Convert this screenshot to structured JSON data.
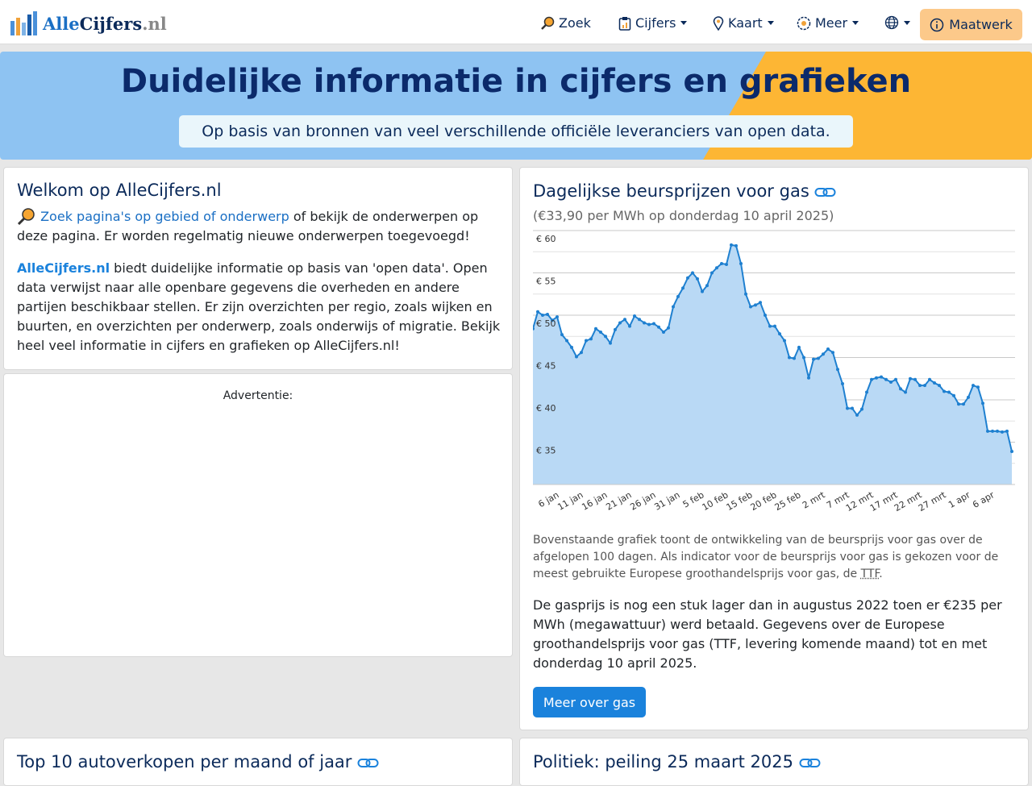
{
  "nav": {
    "brand": {
      "part1": "Alle",
      "part2": "Cijfers",
      "part3": ".nl"
    },
    "items": [
      "Zoek",
      "Cijfers",
      "Kaart",
      "Meer"
    ],
    "button": "Maatwerk"
  },
  "hero": {
    "title": "Duidelijke informatie in cijfers en grafieken",
    "subtitle": "Op basis van bronnen van veel verschillende officiële leveranciers van open data."
  },
  "welcome": {
    "title": "Welkom op AlleCijfers.nl",
    "link": "Zoek pagina's op gebied of onderwerp",
    "text1": " of bekijk de onderwerpen op deze pagina. Er worden regelmatig nieuwe onderwerpen toegevoegd!",
    "brand": "AlleCijfers.nl",
    "text2": " biedt duidelijke informatie op basis van 'open data'. Open data verwijst naar alle openbare gegevens die overheden en andere partijen beschikbaar stellen. Er zijn overzichten per regio, zoals wijken en buurten, en overzichten per onderwerp, zoals onderwijs of migratie. Bekijk heel veel informatie in cijfers en grafieken op AlleCijfers.nl!"
  },
  "ad": {
    "label": "Advertentie:"
  },
  "chart_data": {
    "type": "line",
    "title": "Dagelijkse beursprijzen voor gas",
    "subtitle": "(€33,90 per MWh op donderdag 10 april 2025)",
    "categories": [
      null,
      null,
      null,
      null,
      null,
      "6 jan",
      null,
      null,
      null,
      null,
      "11 jan",
      null,
      null,
      null,
      null,
      "16 jan",
      null,
      null,
      null,
      null,
      "21 jan",
      null,
      null,
      null,
      null,
      "26 jan",
      null,
      null,
      null,
      null,
      "31 jan",
      null,
      null,
      null,
      null,
      "5 feb",
      null,
      null,
      null,
      null,
      "10 feb",
      null,
      null,
      null,
      null,
      "15 feb",
      null,
      null,
      null,
      null,
      "20 feb",
      null,
      null,
      null,
      null,
      "25 feb",
      null,
      null,
      null,
      null,
      "2 mrt",
      null,
      null,
      null,
      null,
      "7 mrt",
      null,
      null,
      null,
      null,
      "12 mrt",
      null,
      null,
      null,
      null,
      "17 mrt",
      null,
      null,
      null,
      null,
      "22 mrt",
      null,
      null,
      null,
      null,
      "27 mrt",
      null,
      null,
      null,
      null,
      "1 apr",
      null,
      null,
      null,
      null,
      "6 apr",
      null,
      null,
      null,
      null
    ],
    "values": [
      48.4,
      50.4,
      50.0,
      50.1,
      49.4,
      49.8,
      47.7,
      47.0,
      46.2,
      45.1,
      45.6,
      47.0,
      47.2,
      48.4,
      48.0,
      47.5,
      46.7,
      48.3,
      49.1,
      49.5,
      48.7,
      49.9,
      49.5,
      49.1,
      48.9,
      49.0,
      48.6,
      48.0,
      48.5,
      51.0,
      52.2,
      53.2,
      54.4,
      55.0,
      54.3,
      52.8,
      53.5,
      55.0,
      55.6,
      56.1,
      56.0,
      58.3,
      58.2,
      56.1,
      52.5,
      51.0,
      51.2,
      51.5,
      50.0,
      48.7,
      48.7,
      47.8,
      47.0,
      45.0,
      44.9,
      46.2,
      45.0,
      42.6,
      44.8,
      44.9,
      45.4,
      46.0,
      45.6,
      43.6,
      41.9,
      39.0,
      39.0,
      38.2,
      38.9,
      40.9,
      42.4,
      42.6,
      42.7,
      42.4,
      42.1,
      42.4,
      41.3,
      40.9,
      42.5,
      42.4,
      41.7,
      41.7,
      42.4,
      42.0,
      41.7,
      41.0,
      40.9,
      40.5,
      39.5,
      39.5,
      40.3,
      41.7,
      41.5,
      39.6,
      36.3,
      36.3,
      36.3,
      36.2,
      36.3,
      33.9
    ],
    "color": "#1f80d0",
    "fill_color": "#b9d9f5",
    "ylim": [
      30,
      60
    ],
    "yticks": [
      {
        "value": 60,
        "label": "€ 60"
      },
      {
        "value": 55,
        "label": "€ 55"
      },
      {
        "value": 50,
        "label": "€ 50"
      },
      {
        "value": 45,
        "label": "€ 45"
      },
      {
        "value": 40,
        "label": "€ 40"
      },
      {
        "value": 35,
        "label": "€ 35"
      }
    ],
    "minor_yticks": [
      57.5,
      52.5,
      47.5,
      42.5,
      37.5,
      32.5
    ],
    "grid": true,
    "caption": "Bovenstaande grafiek toont de ontwikkeling van de beursprijs voor gas over de afgelopen 100 dagen. Als indicator voor de beursprijs voor gas is gekozen voor de meest gebruikte Europese groothandelsprijs voor gas, de ",
    "caption_abbr": "TTF",
    "caption_end": ".",
    "text": "De gasprijs is nog een stuk lager dan in augustus 2022 toen er €235 per MWh (megawattuur) werd betaald. Gegevens over de Europese groothandelsprijs voor gas (TTF, levering komende maand) tot en met donderdag 10 april 2025.",
    "button": "Meer over gas"
  },
  "cards": [
    "Top 10 autoverkopen per maand of jaar",
    "Politiek: peiling 25 maart 2025"
  ]
}
